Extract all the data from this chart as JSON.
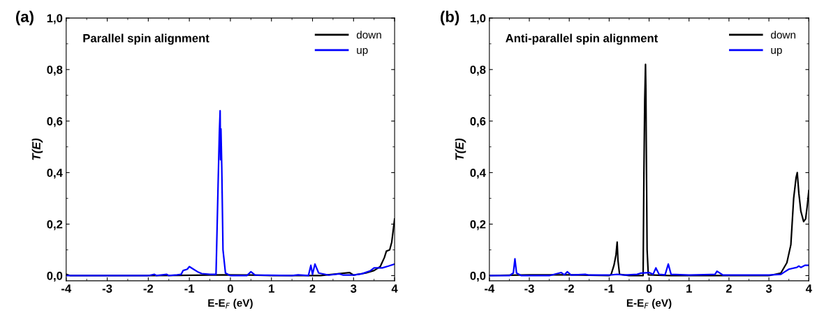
{
  "chart_data": [
    {
      "type": "line",
      "title": "Parallel spin alignment",
      "xlabel": "E-E$_{F}$ (eV)",
      "ylabel": "T(E)",
      "annotations": [
        "(a)"
      ],
      "xlim": [
        -4,
        4
      ],
      "xticks": [
        -4,
        -3,
        -2,
        -1,
        0,
        1,
        2,
        3,
        4
      ],
      "ylim": [
        -0.02,
        1.0
      ],
      "yticks": [
        {
          "value": 0,
          "label": "0,0"
        },
        {
          "value": 0.2,
          "label": "0,2"
        },
        {
          "value": 0.4,
          "label": "0,4"
        },
        {
          "value": 0.6,
          "label": "0,6"
        },
        {
          "value": 0.8,
          "label": "0,8"
        },
        {
          "value": 1.0,
          "label": "1,0"
        }
      ],
      "legend": "top right",
      "grid": false,
      "series": [
        {
          "name": "down",
          "color": "#000000",
          "x": [
            -4,
            -3.9,
            -2,
            -0.5,
            -0.2,
            0.5,
            1.0,
            2.2,
            2.9,
            3.0,
            3.3,
            3.5,
            3.65,
            3.75,
            3.8,
            3.88,
            3.93,
            4.0
          ],
          "values": [
            0.005,
            0.0,
            0.0,
            0.002,
            0.003,
            0.002,
            0.0,
            0.0,
            0.012,
            0.002,
            0.01,
            0.02,
            0.035,
            0.07,
            0.095,
            0.1,
            0.13,
            0.22
          ]
        },
        {
          "name": "up",
          "color": "#0000ff",
          "x": [
            -4,
            -3,
            -2,
            -1.85,
            -1.8,
            -1.55,
            -1.5,
            -1.3,
            -1.2,
            -1.15,
            -1.05,
            -1.0,
            -0.9,
            -0.8,
            -0.7,
            -0.5,
            -0.35,
            -0.3,
            -0.27,
            -0.25,
            -0.24,
            -0.23,
            -0.21,
            -0.18,
            -0.12,
            0,
            0.4,
            0.5,
            0.6,
            1.5,
            1.65,
            1.9,
            1.96,
            2.0,
            2.06,
            2.15,
            2.4,
            2.65,
            2.75,
            3.0,
            3.2,
            3.4,
            3.5,
            3.7,
            3.85,
            4.0
          ],
          "values": [
            0.0,
            0.0,
            0.0,
            0.005,
            0.0,
            0.005,
            0.0,
            0.003,
            0.005,
            0.02,
            0.025,
            0.035,
            0.025,
            0.015,
            0.008,
            0.005,
            0.005,
            0.35,
            0.55,
            0.64,
            0.45,
            0.57,
            0.42,
            0.1,
            0.01,
            0.0,
            0.0,
            0.015,
            0.002,
            0.0,
            0.003,
            0.0,
            0.04,
            0.005,
            0.045,
            0.01,
            0.002,
            0.007,
            0.002,
            0.002,
            0.007,
            0.018,
            0.03,
            0.03,
            0.037,
            0.045
          ]
        }
      ]
    },
    {
      "type": "line",
      "title": "Anti-parallel spin alignment",
      "xlabel": "E-E$_{F}$ (eV)",
      "ylabel": "T(E)",
      "annotations": [
        "(b)"
      ],
      "xlim": [
        -4,
        4
      ],
      "xticks": [
        -4,
        -3,
        -2,
        -1,
        0,
        1,
        2,
        3,
        4
      ],
      "ylim": [
        -0.02,
        1.0
      ],
      "yticks": [
        {
          "value": 0,
          "label": "0,0"
        },
        {
          "value": 0.2,
          "label": "0,2"
        },
        {
          "value": 0.4,
          "label": "0,4"
        },
        {
          "value": 0.6,
          "label": "0,6"
        },
        {
          "value": 0.8,
          "label": "0,8"
        },
        {
          "value": 1.0,
          "label": "1,0"
        }
      ],
      "legend": "top right",
      "grid": false,
      "series": [
        {
          "name": "down",
          "color": "#000000",
          "x": [
            -4,
            -3,
            -2,
            -1,
            -0.95,
            -0.88,
            -0.83,
            -0.8,
            -0.78,
            -0.74,
            -0.5,
            -0.15,
            -0.13,
            -0.11,
            -0.09,
            -0.08,
            -0.07,
            -0.05,
            -0.02,
            0.5,
            3.0,
            3.3,
            3.45,
            3.55,
            3.62,
            3.68,
            3.71,
            3.75,
            3.8,
            3.87,
            3.92,
            3.96,
            4.0
          ],
          "values": [
            0.0,
            0.003,
            0.003,
            0.0,
            0.005,
            0.04,
            0.08,
            0.13,
            0.06,
            0.005,
            0.0,
            0.0,
            0.4,
            0.68,
            0.82,
            0.72,
            0.5,
            0.1,
            0.003,
            0.0,
            0.0,
            0.01,
            0.05,
            0.12,
            0.3,
            0.38,
            0.4,
            0.32,
            0.25,
            0.21,
            0.22,
            0.27,
            0.33
          ]
        },
        {
          "name": "up",
          "color": "#0000ff",
          "x": [
            -4,
            -3.5,
            -3.4,
            -3.36,
            -3.32,
            -3.2,
            -2.5,
            -2.2,
            -2.12,
            -2.05,
            -1.95,
            -1.6,
            -1.5,
            -1.0,
            -0.8,
            -0.6,
            -0.3,
            -0.2,
            0.0,
            0.1,
            0.17,
            0.25,
            0.4,
            0.48,
            0.55,
            1.0,
            1.65,
            1.7,
            1.85,
            3.0,
            3.3,
            3.4,
            3.5,
            3.7,
            3.75,
            3.8,
            3.9,
            4.0
          ],
          "values": [
            0.0,
            0.0,
            0.01,
            0.065,
            0.01,
            0.0,
            0.0,
            0.012,
            0.003,
            0.015,
            0.002,
            0.005,
            0.002,
            0.002,
            0.005,
            0.002,
            0.005,
            0.01,
            0.012,
            0.005,
            0.03,
            0.005,
            0.003,
            0.045,
            0.005,
            0.002,
            0.005,
            0.017,
            0.002,
            0.002,
            0.005,
            0.015,
            0.025,
            0.032,
            0.037,
            0.032,
            0.04,
            0.04
          ]
        }
      ]
    }
  ]
}
